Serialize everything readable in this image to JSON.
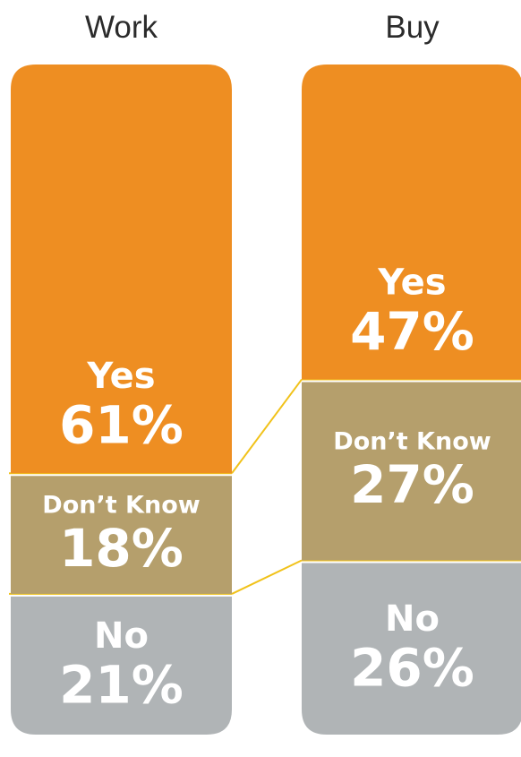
{
  "chart_data": {
    "type": "bar",
    "stacked": true,
    "orientation": "vertical",
    "categories": [
      "Work",
      "Buy"
    ],
    "series": [
      {
        "name": "Yes",
        "values": [
          61,
          47
        ],
        "labels": [
          "61%",
          "47%"
        ]
      },
      {
        "name": "Don’t Know",
        "values": [
          18,
          27
        ],
        "labels": [
          "18%",
          "27%"
        ]
      },
      {
        "name": "No",
        "values": [
          21,
          26
        ],
        "labels": [
          "21%",
          "26%"
        ]
      }
    ],
    "unit": "%",
    "ylim": [
      0,
      100
    ],
    "grid": false,
    "legend": "none"
  },
  "colors": {
    "Yes": "#ee8e22",
    "Don’t Know": "#b59f6c",
    "No": "#b0b4b6",
    "connector": "#f1c21a",
    "title_text": "#2b2b2b"
  }
}
